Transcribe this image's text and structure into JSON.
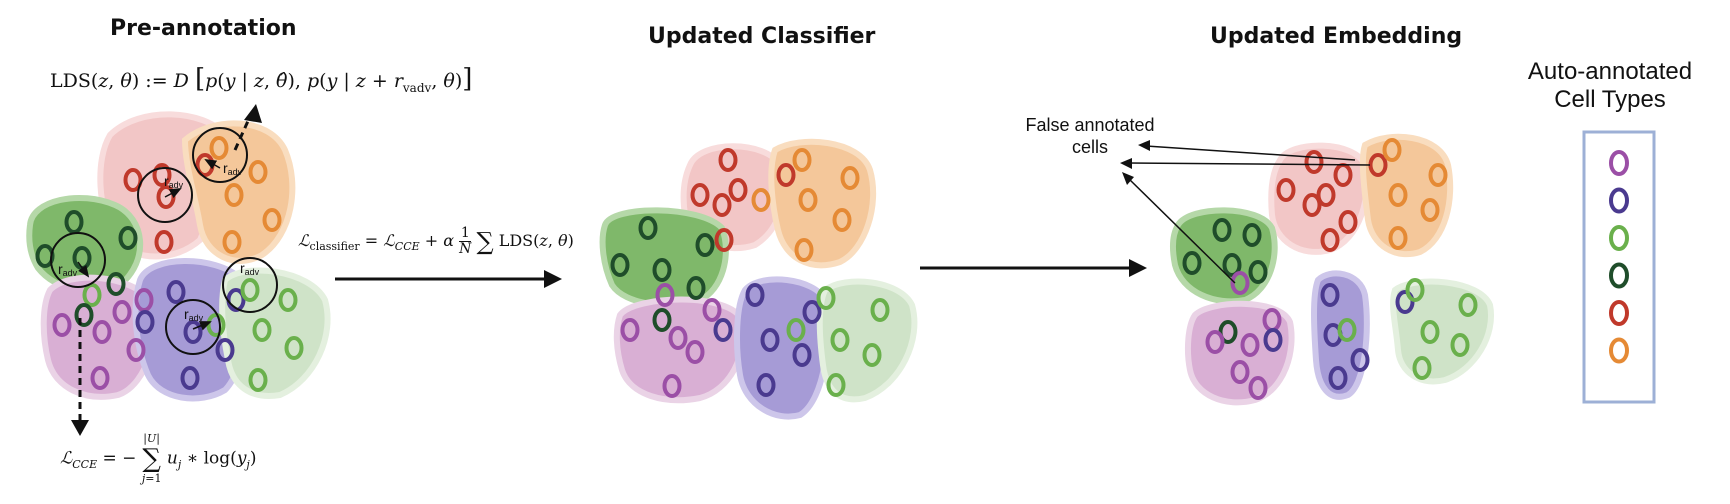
{
  "titles": {
    "pre_annotation": "Pre-annotation",
    "updated_classifier": "Updated Classifier",
    "updated_embedding": "Updated Embedding"
  },
  "formulas": {
    "lds": "LDS(z, θ) := D[p(y | z, θ̂), p(y | z + r_vadv, θ)]",
    "classifier_loss": "ℒ_classifier = ℒ_CCE + α (1/N) Σ LDS(z, θ)",
    "cce_loss": "ℒ_CCE = − Σ_{j=1}^{|U|} u_j ∗ log(y_j)"
  },
  "radius_label": "r",
  "radius_subscript": "adv",
  "annotation": {
    "false_annotated_line1": "False annotated",
    "false_annotated_line2": "cells"
  },
  "legend": {
    "title_line1": "Auto-annotated",
    "title_line2": "Cell Types",
    "items": [
      {
        "name": "purple",
        "color": "#9b4fa6"
      },
      {
        "name": "indigo",
        "color": "#4a3a8f"
      },
      {
        "name": "light-green",
        "color": "#6ab04c"
      },
      {
        "name": "dark-green",
        "color": "#1f4d2a"
      },
      {
        "name": "red",
        "color": "#c0392b"
      },
      {
        "name": "orange",
        "color": "#e58a35"
      }
    ]
  },
  "cluster_colors": {
    "pink": "#f2c6c6",
    "orange": "#f4c79a",
    "green": "#7fb86a",
    "violet": "#d9afd4",
    "lavender": "#a69bd6",
    "mint": "#cfe3c8"
  }
}
